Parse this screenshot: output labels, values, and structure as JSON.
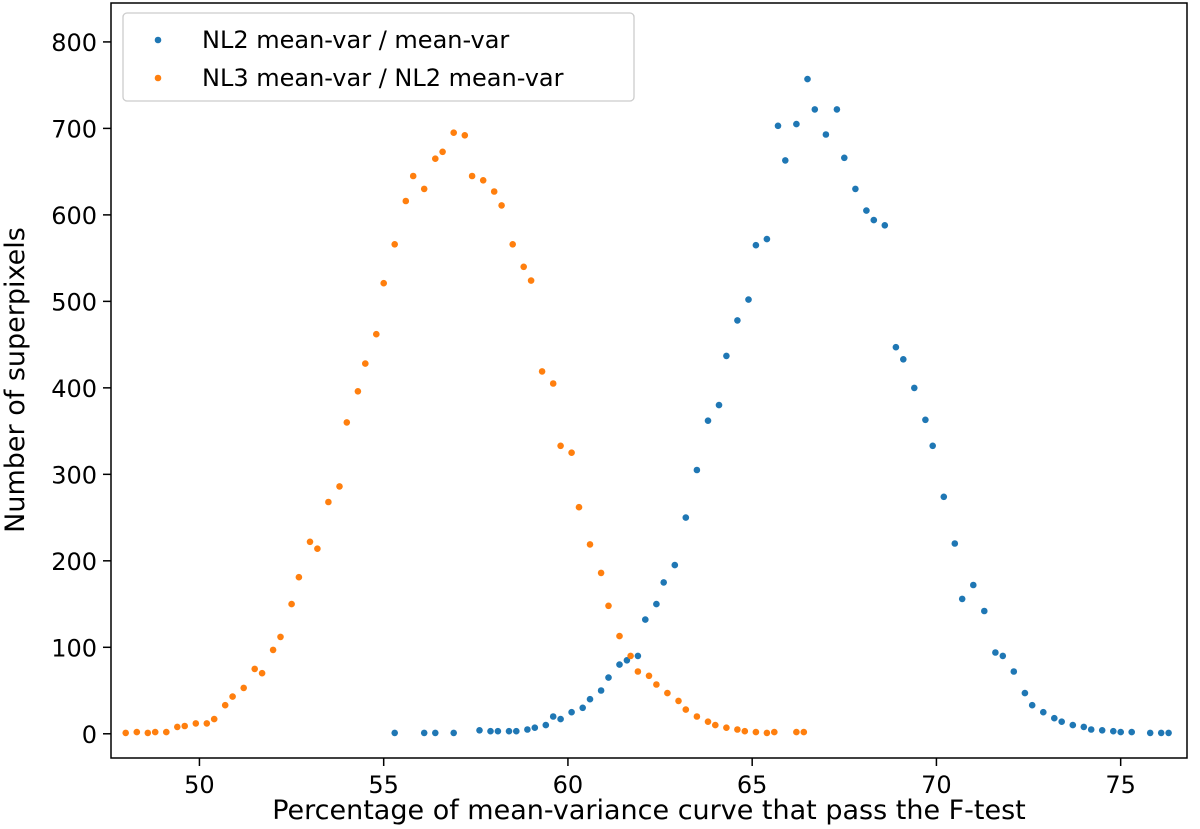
{
  "chart_data": {
    "type": "scatter",
    "title": "",
    "xlabel": "Percentage of mean-variance curve that pass the F-test",
    "ylabel": "Number of superpixels",
    "xlim": [
      47.6,
      76.8
    ],
    "ylim": [
      -28,
      845
    ],
    "xticks": [
      50,
      55,
      60,
      65,
      70,
      75
    ],
    "yticks": [
      0,
      100,
      200,
      300,
      400,
      500,
      600,
      700,
      800
    ],
    "grid": false,
    "legend_position": "top-left",
    "series": [
      {
        "name": "NL2 mean-var / mean-var",
        "color": "#1f77b4",
        "x": [
          55.3,
          56.1,
          56.4,
          56.9,
          57.6,
          57.9,
          58.1,
          58.4,
          58.6,
          58.9,
          59.1,
          59.4,
          59.6,
          59.8,
          60.1,
          60.4,
          60.6,
          60.9,
          61.1,
          61.4,
          61.6,
          61.9,
          62.1,
          62.4,
          62.6,
          62.9,
          63.2,
          63.5,
          63.8,
          64.1,
          64.3,
          64.6,
          64.9,
          65.1,
          65.4,
          65.7,
          65.9,
          66.2,
          66.5,
          66.7,
          67.0,
          67.3,
          67.5,
          67.8,
          68.1,
          68.3,
          68.6,
          68.9,
          69.1,
          69.4,
          69.7,
          69.9,
          70.2,
          70.5,
          70.7,
          71.0,
          71.3,
          71.6,
          71.8,
          72.1,
          72.4,
          72.6,
          72.9,
          73.2,
          73.4,
          73.7,
          74.0,
          74.2,
          74.5,
          74.8,
          75.0,
          75.3,
          75.8,
          76.1,
          76.3
        ],
        "y": [
          1,
          1,
          1,
          1,
          4,
          3,
          3,
          3,
          3,
          5,
          7,
          10,
          20,
          17,
          25,
          30,
          40,
          50,
          65,
          80,
          85,
          90,
          132,
          150,
          175,
          195,
          250,
          305,
          362,
          380,
          437,
          478,
          502,
          565,
          572,
          703,
          663,
          705,
          757,
          722,
          693,
          722,
          666,
          630,
          605,
          594,
          588,
          447,
          433,
          400,
          363,
          333,
          274,
          220,
          156,
          172,
          142,
          94,
          90,
          72,
          47,
          33,
          25,
          18,
          14,
          10,
          8,
          5,
          4,
          3,
          2,
          2,
          1,
          1,
          1
        ]
      },
      {
        "name": "NL3 mean-var / NL2 mean-var",
        "color": "#ff7f0e",
        "x": [
          48.0,
          48.3,
          48.6,
          48.8,
          49.1,
          49.4,
          49.6,
          49.9,
          50.2,
          50.4,
          50.7,
          50.9,
          51.2,
          51.5,
          51.7,
          52.0,
          52.2,
          52.5,
          52.7,
          53.0,
          53.2,
          53.5,
          53.8,
          54.0,
          54.3,
          54.5,
          54.8,
          55.0,
          55.3,
          55.6,
          55.8,
          56.1,
          56.4,
          56.6,
          56.9,
          57.2,
          57.4,
          57.7,
          58.0,
          58.2,
          58.5,
          58.8,
          59.0,
          59.3,
          59.6,
          59.8,
          60.1,
          60.3,
          60.6,
          60.9,
          61.1,
          61.4,
          61.7,
          61.9,
          62.2,
          62.4,
          62.7,
          63.0,
          63.2,
          63.5,
          63.8,
          64.0,
          64.3,
          64.6,
          64.8,
          65.1,
          65.4,
          65.6,
          66.2,
          66.4
        ],
        "y": [
          1,
          2,
          1,
          2,
          2,
          8,
          9,
          12,
          12,
          17,
          33,
          43,
          53,
          75,
          70,
          97,
          112,
          150,
          181,
          222,
          214,
          268,
          286,
          360,
          396,
          428,
          462,
          521,
          566,
          616,
          645,
          630,
          665,
          673,
          695,
          692,
          645,
          640,
          627,
          611,
          566,
          540,
          524,
          419,
          405,
          333,
          325,
          262,
          219,
          186,
          148,
          113,
          90,
          72,
          67,
          57,
          47,
          38,
          28,
          20,
          14,
          10,
          7,
          5,
          3,
          2,
          1,
          2,
          2,
          2
        ]
      }
    ]
  }
}
